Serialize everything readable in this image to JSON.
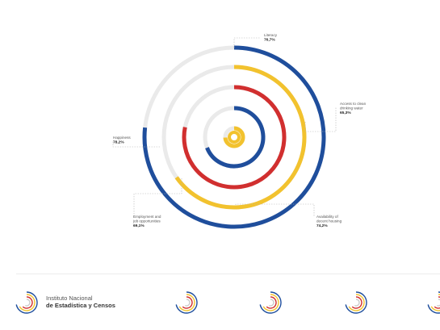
{
  "chart_data": {
    "type": "radial-bar",
    "max": 100,
    "unit": "%",
    "series": [
      {
        "name": "Literacy",
        "value": 76.7,
        "label": "76,7%",
        "color": "#1f4e9c"
      },
      {
        "name": "Access to clean drinking water",
        "value": 65.3,
        "label": "65,3%",
        "color": "#f2c22e"
      },
      {
        "name": "Happiness",
        "value": 78.2,
        "label": "78,2%",
        "color": "#d12f2f"
      },
      {
        "name": "Employment and job opportunities",
        "value": 69.1,
        "label": "69,1%",
        "color": "#1f4e9c"
      },
      {
        "name": "Availability of decent housing",
        "value": 74.2,
        "label": "74,2%",
        "color": "#f2c22e"
      }
    ],
    "labels": [
      {
        "series": 0,
        "lines": [
          "Literacy"
        ],
        "value": "76,7%"
      },
      {
        "series": 1,
        "lines": [
          "Access to clean",
          "drinking water"
        ],
        "value": "65,3%"
      },
      {
        "series": 2,
        "lines": [
          "Happiness"
        ],
        "value": "78,2%"
      },
      {
        "series": 3,
        "lines": [
          "Employment and",
          "job opportunities"
        ],
        "value": "69,1%"
      },
      {
        "series": 4,
        "lines": [
          "Availability of",
          "decent housing"
        ],
        "value": "74,2%"
      }
    ]
  },
  "footer": {
    "brand_line1": "Instituto Nacional",
    "brand_line2": "de Estadística y Censos",
    "logo_colors": [
      "#1f4e9c",
      "#f2c22e",
      "#d12f2f",
      "#cccccc"
    ]
  }
}
